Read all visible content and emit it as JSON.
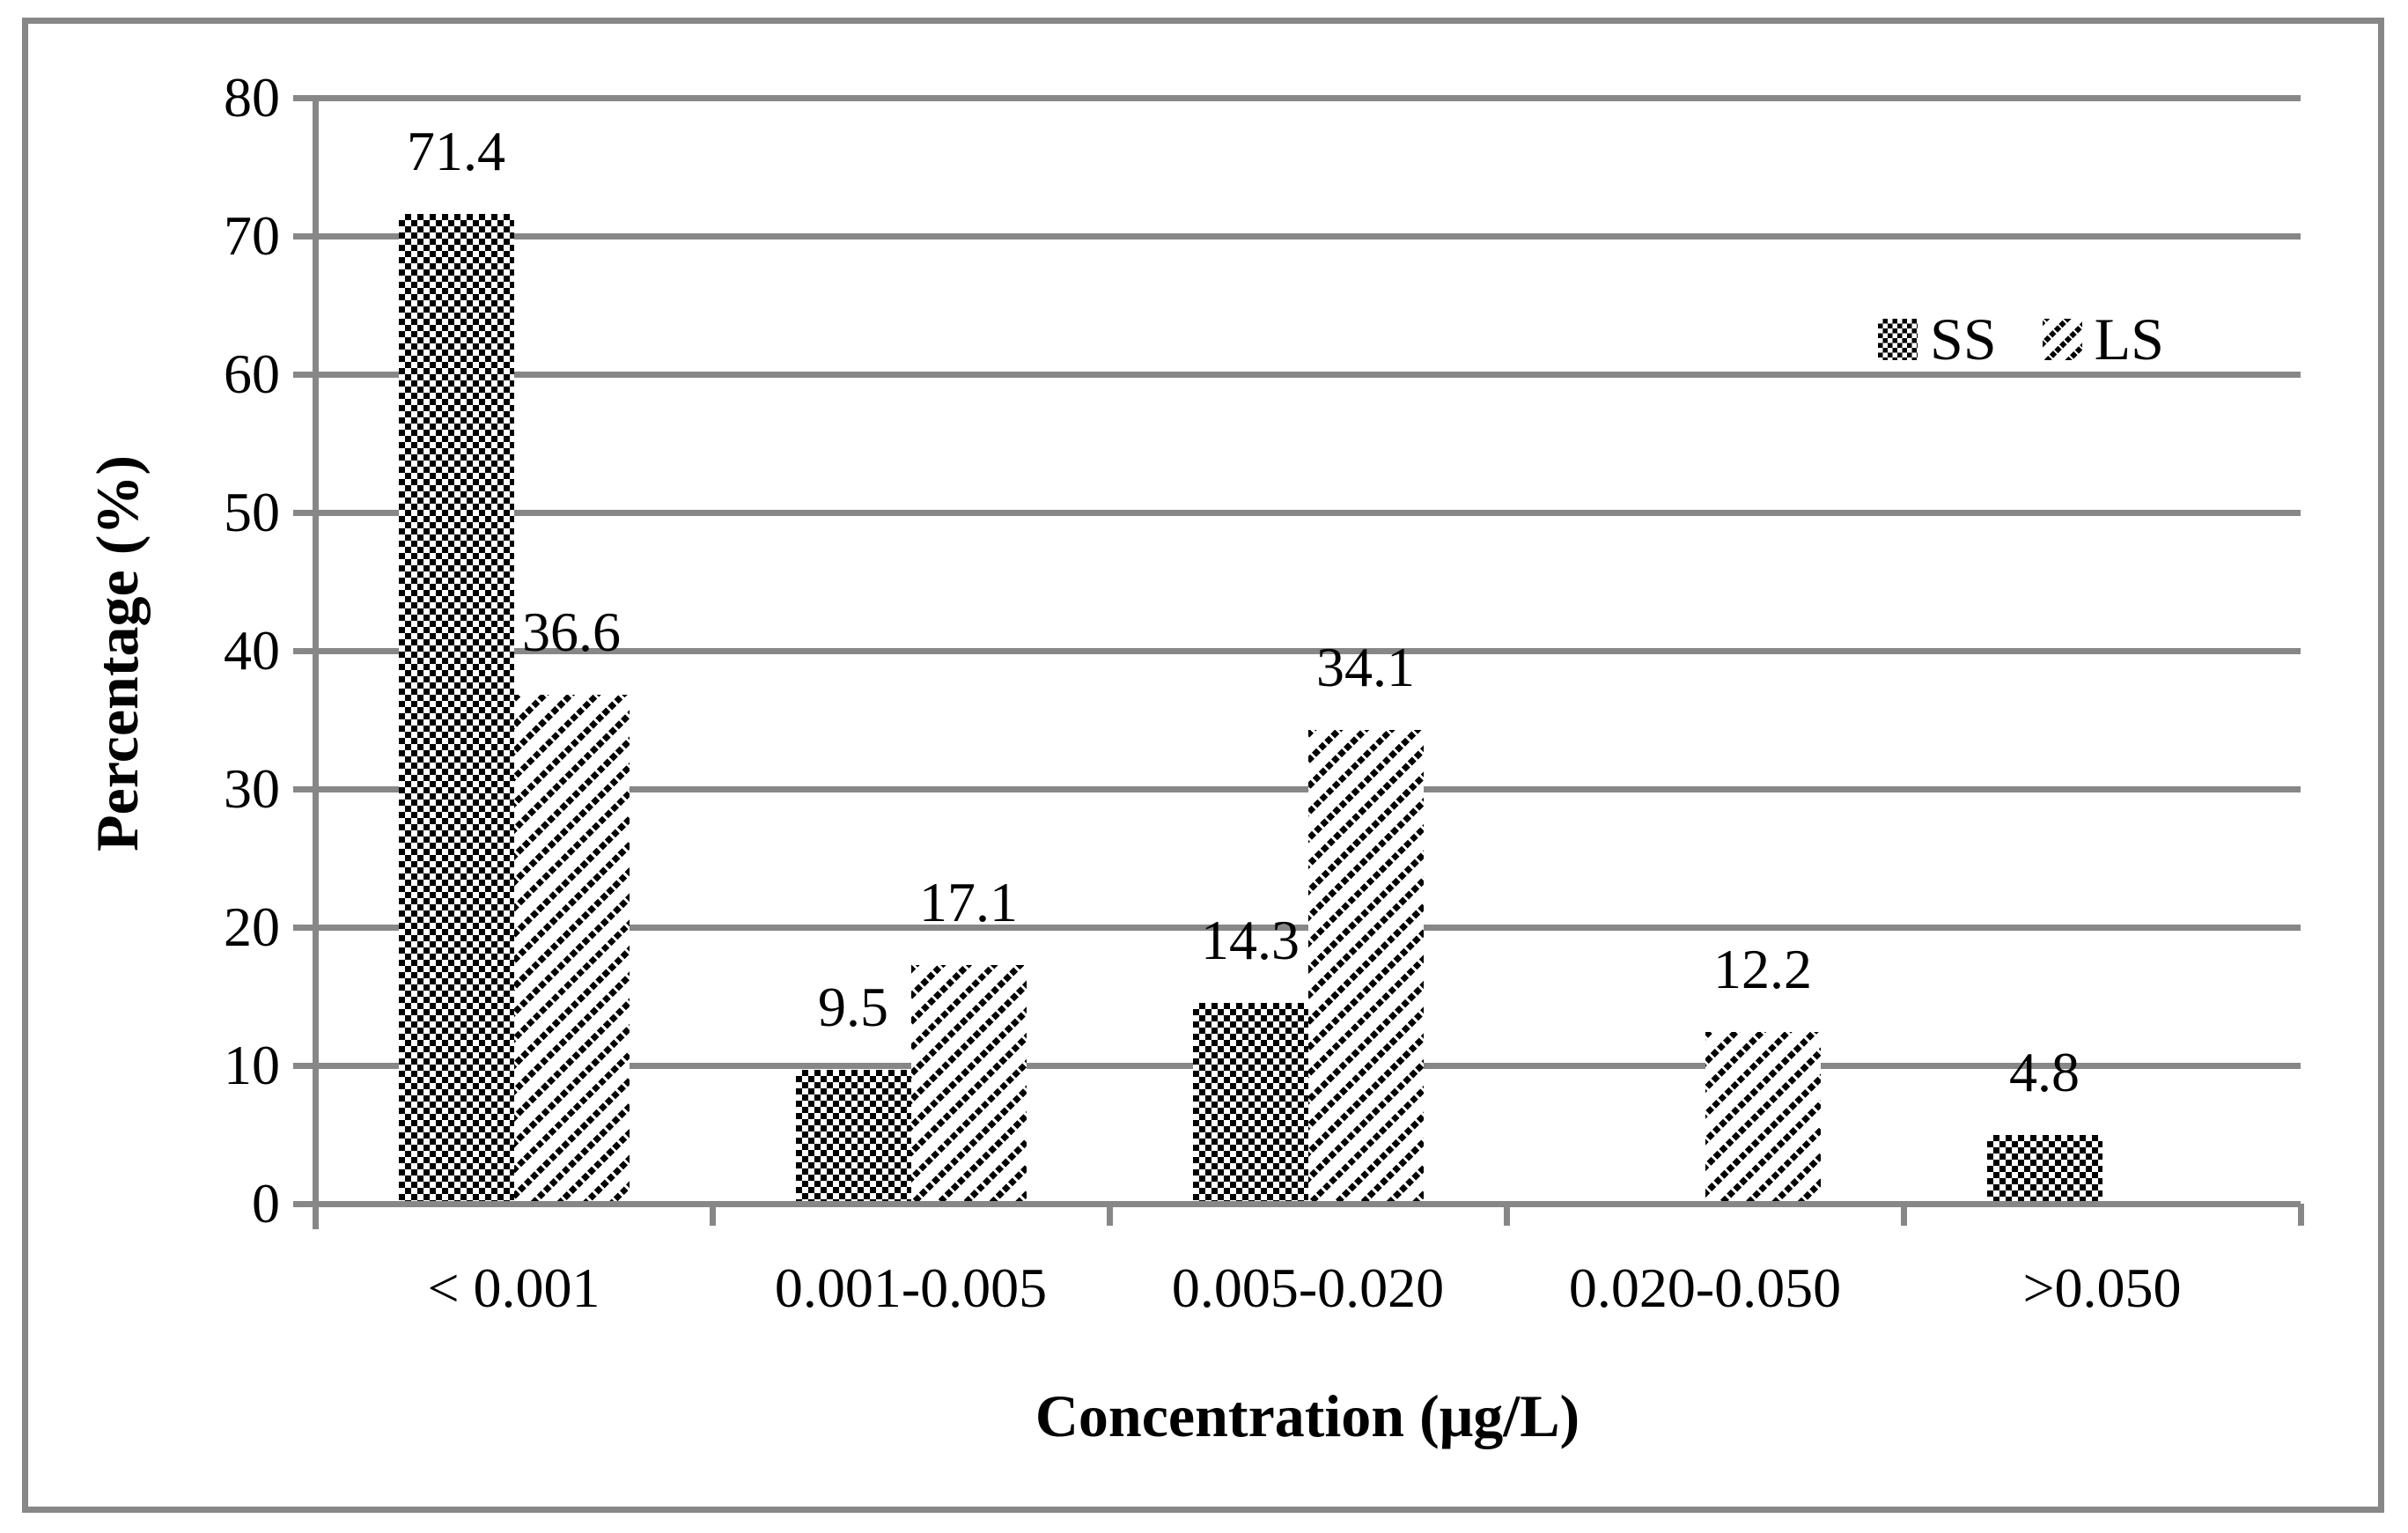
{
  "figure": {
    "background": "#ffffff",
    "frame_color": "#878787",
    "axis_color": "#878787",
    "text_color": "#000000"
  },
  "legend": {
    "position": "upper-right",
    "items": [
      {
        "label": "SS",
        "swatch": "checkerboard-pattern"
      },
      {
        "label": "LS",
        "swatch": "diagonal-hatch-pattern"
      }
    ]
  },
  "chart_data": {
    "type": "bar",
    "title": "",
    "xlabel": "Concentration (μg/L)",
    "ylabel": "Percentage (%)",
    "categories": [
      "< 0.001",
      "0.001-0.005",
      "0.005-0.020",
      "0.020-0.050",
      ">0.050"
    ],
    "series": [
      {
        "name": "SS",
        "pattern": "checkerboard",
        "values": [
          71.4,
          9.5,
          14.3,
          null,
          4.8
        ]
      },
      {
        "name": "LS",
        "pattern": "diagonal-hatch",
        "values": [
          36.6,
          17.1,
          34.1,
          12.2,
          null
        ]
      }
    ],
    "data_labels_shown": true,
    "y_ticks": [
      "0",
      "10",
      "20",
      "30",
      "40",
      "50",
      "60",
      "70",
      "80"
    ],
    "ylim": [
      0,
      80
    ],
    "grid": "horizontal-gridlines",
    "legend_position": "upper-right",
    "bar_fill": "black-pattern-on-white"
  }
}
